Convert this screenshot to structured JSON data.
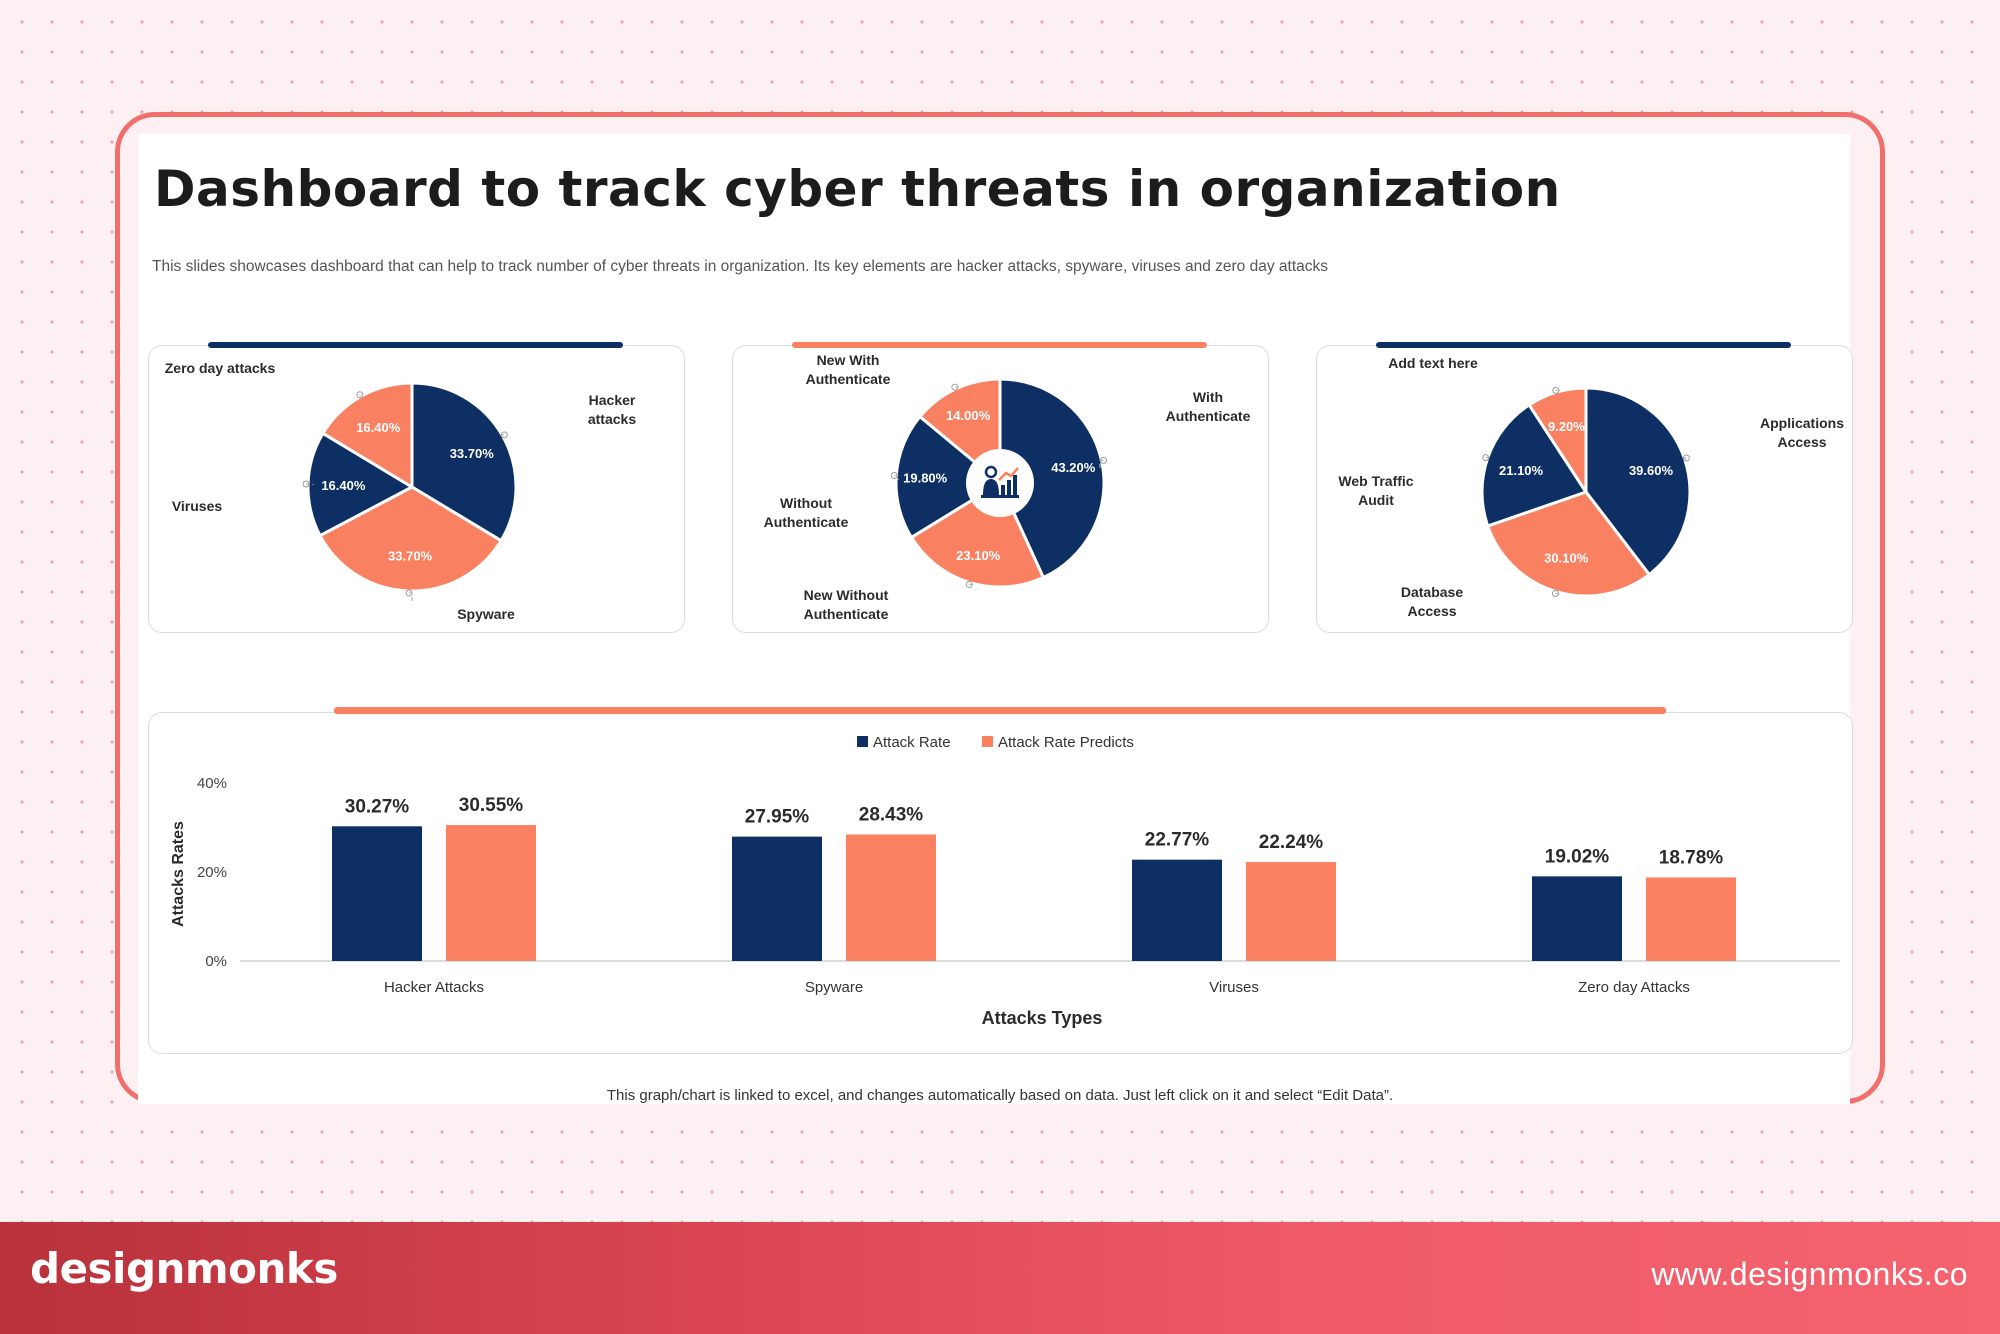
{
  "header": {
    "title": "Dashboard to track cyber threats in organization",
    "subtitle": "This slides showcases dashboard that can help to track number of cyber threats in organization. Its key elements are hacker attacks, spyware, viruses and zero day attacks"
  },
  "footnote": "This graph/chart is linked to excel, and changes automatically based on data. Just left click on it and select “Edit Data”.",
  "brand": {
    "logo": "designmonks",
    "url": "www.designmonks.co"
  },
  "colors": {
    "navy": "#0e2f63",
    "salmon": "#fa8062",
    "frame": "#f26e6a"
  },
  "chart_data": [
    {
      "type": "pie",
      "title": "",
      "slices": [
        {
          "label": "Hacker attacks",
          "value": 33.7,
          "display": "33.70%",
          "color": "#0e2f63"
        },
        {
          "label": "Spyware",
          "value": 33.7,
          "display": "33.70%",
          "color": "#fa8062"
        },
        {
          "label": "Viruses",
          "value": 16.4,
          "display": "16.40%",
          "color": "#0e2f63"
        },
        {
          "label": "Zero day attacks",
          "value": 16.4,
          "display": "16.40%",
          "color": "#fa8062"
        }
      ]
    },
    {
      "type": "pie",
      "title": "",
      "center_icon": "person-chart-icon",
      "slices": [
        {
          "label": "With Authenticate",
          "value": 43.2,
          "display": "43.20%",
          "color": "#0e2f63"
        },
        {
          "label": "New Without Authenticate",
          "value": 23.1,
          "display": "23.10%",
          "color": "#fa8062"
        },
        {
          "label": "Without Authenticate",
          "value": 19.8,
          "display": "19.80%",
          "color": "#0e2f63"
        },
        {
          "label": "New With Authenticate",
          "value": 14.0,
          "display": "14.00%",
          "color": "#fa8062"
        }
      ]
    },
    {
      "type": "pie",
      "title": "",
      "slices": [
        {
          "label": "Applications Access",
          "value": 39.6,
          "display": "39.60%",
          "color": "#0e2f63"
        },
        {
          "label": "Database Access",
          "value": 30.1,
          "display": "30.10%",
          "color": "#fa8062"
        },
        {
          "label": "Web Traffic Audit",
          "value": 21.1,
          "display": "21.10%",
          "color": "#0e2f63"
        },
        {
          "label": "Add text here",
          "value": 9.2,
          "display": "9.20%",
          "color": "#fa8062"
        }
      ]
    },
    {
      "type": "bar",
      "title": "",
      "categories": [
        "Hacker Attacks",
        "Spyware",
        "Viruses",
        "Zero day Attacks"
      ],
      "series": [
        {
          "name": "Attack Rate",
          "color": "#0e2f63",
          "values": [
            30.27,
            27.95,
            22.77,
            19.02
          ]
        },
        {
          "name": "Attack Rate Predicts",
          "color": "#fa8062",
          "values": [
            30.55,
            28.43,
            22.24,
            18.78
          ]
        }
      ],
      "xlabel": "Attacks Types",
      "ylabel": "Attacks Rates",
      "ylim": [
        0,
        40
      ],
      "yticks": [
        "0%",
        "20%",
        "40%"
      ],
      "grid": false,
      "legend": "top-center"
    }
  ]
}
